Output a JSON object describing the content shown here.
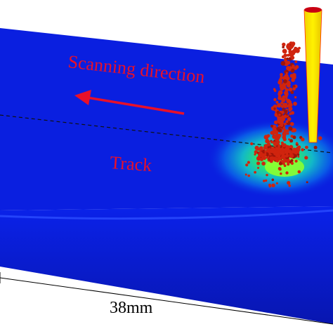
{
  "labels": {
    "scanning_direction": "Scanning direction",
    "track": "Track",
    "dimension": "38mm"
  },
  "colors": {
    "substrate_top": "#0a1fe0",
    "substrate_side": "#0718b8",
    "annotation_text": "#e8102a",
    "arrow": "#e8102a",
    "nozzle": "#f5e600",
    "nozzle_outline": "#ff1a00",
    "powder": "#c81e0c",
    "melt_pool_core": "#7cff34"
  },
  "icons": {
    "scan_arrow": "arrow-left-icon"
  }
}
